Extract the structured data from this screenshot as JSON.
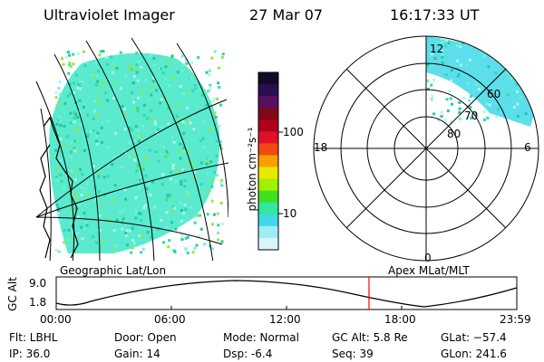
{
  "header": {
    "instrument": "Ultraviolet Imager",
    "date": "27 Mar 07",
    "time": "16:17:33 UT"
  },
  "colorbar": {
    "label": "photon cm⁻²s⁻¹",
    "ticks": [
      "100",
      "10"
    ],
    "colors": [
      "#140a28",
      "#2a1050",
      "#5a1060",
      "#800818",
      "#b0001c",
      "#e0102a",
      "#f04a10",
      "#f5a000",
      "#e8e800",
      "#a0f000",
      "#40e020",
      "#30e8a0",
      "#40d8e8",
      "#a0ecf4",
      "#d8f6fa"
    ]
  },
  "left_panel": {
    "label": "Geographic Lat/Lon"
  },
  "polar_panel": {
    "label": "Apex MLat/MLT",
    "hour_labels": [
      "12",
      "18",
      "6",
      "0"
    ],
    "lat_labels": [
      "60",
      "70",
      "80"
    ]
  },
  "altitude_plot": {
    "ylabel": "GC Alt",
    "y_ticks": [
      "9.0",
      "1.8"
    ],
    "x_ticks": [
      "00:00",
      "06:00",
      "12:00",
      "18:00",
      "23:59"
    ]
  },
  "status": {
    "filter": "Flt: LBHL",
    "ip": "IP: 36.0",
    "door": "Door: Open",
    "gain": "Gain: 14",
    "mode": "Mode: Normal",
    "dsp": "Dsp:    -6.4",
    "gc_alt": "GC Alt: 5.8 Re",
    "seq": "Seq: 39",
    "glat": "GLat: −57.4",
    "glon": "GLon: 241.6"
  }
}
